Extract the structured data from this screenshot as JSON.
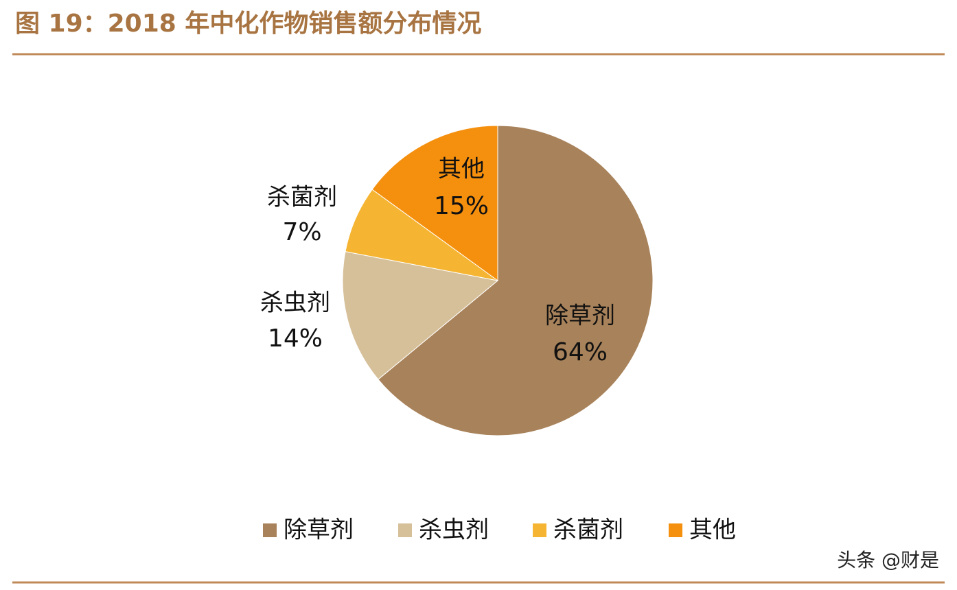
{
  "chart_data": {
    "type": "pie",
    "title": "图 19：2018 年中化作物销售额分布情况",
    "categories": [
      "除草剂",
      "杀虫剂",
      "杀菌剂",
      "其他"
    ],
    "values": [
      64,
      14,
      7,
      15
    ],
    "value_labels": [
      "64%",
      "14%",
      "7%",
      "15%"
    ],
    "colors": [
      "#a8825a",
      "#d6c09a",
      "#f5b532",
      "#f5900f"
    ],
    "legend": "bottom"
  },
  "watermark": "头条 @财是"
}
